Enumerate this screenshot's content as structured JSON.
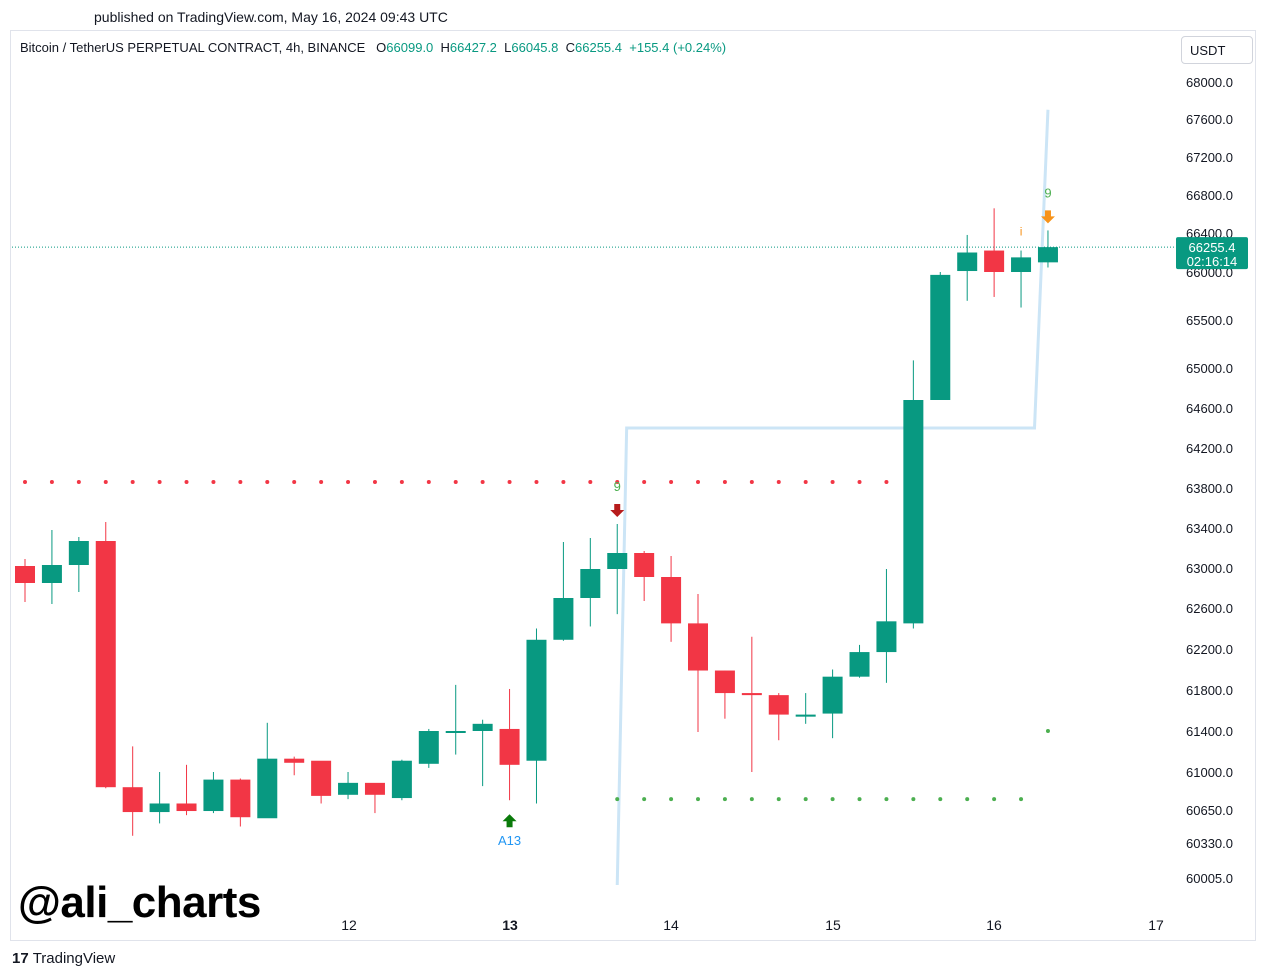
{
  "published": "published on TradingView.com, May 16, 2024 09:43 UTC",
  "header": {
    "symbol": "Bitcoin / TetherUS PERPETUAL CONTRACT, 4h, BINANCE",
    "o_label": "O",
    "o": "66099.0",
    "h_label": "H",
    "h": "66427.2",
    "l_label": "L",
    "l": "66045.8",
    "c_label": "C",
    "c": "66255.4",
    "change": "+155.4 (+0.24%)"
  },
  "currency": "USDT",
  "watermark": "@ali_charts",
  "brand": "TradingView",
  "colors": {
    "up": "#089981",
    "down": "#f23645",
    "trend": "#cce5f6",
    "dot_red": "#f23645",
    "dot_green": "#4caf50",
    "label_orange": "#f7931a"
  },
  "chart_data": {
    "type": "candlestick",
    "y_ticks": [
      "68000.0",
      "67600.0",
      "67200.0",
      "66800.0",
      "66400.0",
      "66000.0",
      "65500.0",
      "65000.0",
      "64600.0",
      "64200.0",
      "63800.0",
      "63400.0",
      "63000.0",
      "62600.0",
      "62200.0",
      "61800.0",
      "61400.0",
      "61000.0",
      "60650.0",
      "60330.0",
      "60005.0"
    ],
    "x_ticks": [
      {
        "label": "12",
        "bold": false
      },
      {
        "label": "13",
        "bold": true
      },
      {
        "label": "14",
        "bold": false
      },
      {
        "label": "15",
        "bold": false
      },
      {
        "label": "16",
        "bold": false
      },
      {
        "label": "17",
        "bold": false
      }
    ],
    "last_price": "66255.4",
    "countdown": "02:16:14",
    "candles": [
      {
        "o": 63020,
        "h": 63090,
        "l": 62660,
        "c": 62850
      },
      {
        "o": 62850,
        "h": 63380,
        "l": 62640,
        "c": 63030
      },
      {
        "o": 63030,
        "h": 63310,
        "l": 62760,
        "c": 63270
      },
      {
        "o": 63270,
        "h": 63460,
        "l": 60850,
        "c": 60860
      },
      {
        "o": 60860,
        "h": 61250,
        "l": 60400,
        "c": 60630
      },
      {
        "o": 60630,
        "h": 61000,
        "l": 60520,
        "c": 60710
      },
      {
        "o": 60710,
        "h": 61070,
        "l": 60600,
        "c": 60640
      },
      {
        "o": 60640,
        "h": 61000,
        "l": 60620,
        "c": 60930
      },
      {
        "o": 60930,
        "h": 60940,
        "l": 60490,
        "c": 60580
      },
      {
        "o": 60570,
        "h": 61480,
        "l": 60580,
        "c": 61130
      },
      {
        "o": 61130,
        "h": 61150,
        "l": 60970,
        "c": 61090
      },
      {
        "o": 61110,
        "h": 61100,
        "l": 60710,
        "c": 60780
      },
      {
        "o": 60790,
        "h": 61000,
        "l": 60750,
        "c": 60900
      },
      {
        "o": 60900,
        "h": 60890,
        "l": 60620,
        "c": 60790
      },
      {
        "o": 60760,
        "h": 61120,
        "l": 60740,
        "c": 61110
      },
      {
        "o": 61080,
        "h": 61420,
        "l": 61040,
        "c": 61400
      },
      {
        "o": 61400,
        "h": 61850,
        "l": 61170,
        "c": 61400
      },
      {
        "o": 61400,
        "h": 61510,
        "l": 60870,
        "c": 61470
      },
      {
        "o": 61420,
        "h": 61810,
        "l": 60740,
        "c": 61070
      },
      {
        "o": 61110,
        "h": 62400,
        "l": 60710,
        "c": 62290
      },
      {
        "o": 62290,
        "h": 63260,
        "l": 62280,
        "c": 62700
      },
      {
        "o": 62700,
        "h": 63300,
        "l": 62420,
        "c": 62990
      },
      {
        "o": 62990,
        "h": 63440,
        "l": 62540,
        "c": 63150
      },
      {
        "o": 63150,
        "h": 63170,
        "l": 62670,
        "c": 62910
      },
      {
        "o": 62910,
        "h": 63120,
        "l": 62270,
        "c": 62450
      },
      {
        "o": 62450,
        "h": 62740,
        "l": 61390,
        "c": 61990
      },
      {
        "o": 61990,
        "h": 61990,
        "l": 61520,
        "c": 61770
      },
      {
        "o": 61770,
        "h": 62320,
        "l": 61000,
        "c": 61750
      },
      {
        "o": 61750,
        "h": 61770,
        "l": 61310,
        "c": 61560
      },
      {
        "o": 61540,
        "h": 61770,
        "l": 61470,
        "c": 61560
      },
      {
        "o": 61570,
        "h": 62000,
        "l": 61330,
        "c": 61930
      },
      {
        "o": 61930,
        "h": 62240,
        "l": 61920,
        "c": 62170
      },
      {
        "o": 62170,
        "h": 62990,
        "l": 61870,
        "c": 62470
      },
      {
        "o": 62450,
        "h": 65080,
        "l": 62400,
        "c": 64680
      },
      {
        "o": 64680,
        "h": 66000,
        "l": 64690,
        "c": 65970
      },
      {
        "o": 66010,
        "h": 66380,
        "l": 65700,
        "c": 66200
      },
      {
        "o": 66220,
        "h": 66660,
        "l": 65740,
        "c": 66000
      },
      {
        "o": 66000,
        "h": 66220,
        "l": 65630,
        "c": 66150
      },
      {
        "o": 66099,
        "h": 66427,
        "l": 66046,
        "c": 66255
      }
    ],
    "red_dots_level": 63860,
    "green_dots_level": 60750,
    "green_dot_single": 61400,
    "trendline": [
      [
        22,
        59940
      ],
      [
        22.35,
        64400
      ],
      [
        37.5,
        64400
      ],
      [
        38,
        67700
      ]
    ],
    "markers": [
      {
        "label": "A13",
        "type": "arrow-up",
        "candle": 18
      },
      {
        "label": "9",
        "type": "arrow-down",
        "candle": 22
      },
      {
        "label": "9",
        "type": "arrow-down",
        "candle": 38
      },
      {
        "label": "i",
        "type": "text",
        "candle": 37
      }
    ]
  }
}
